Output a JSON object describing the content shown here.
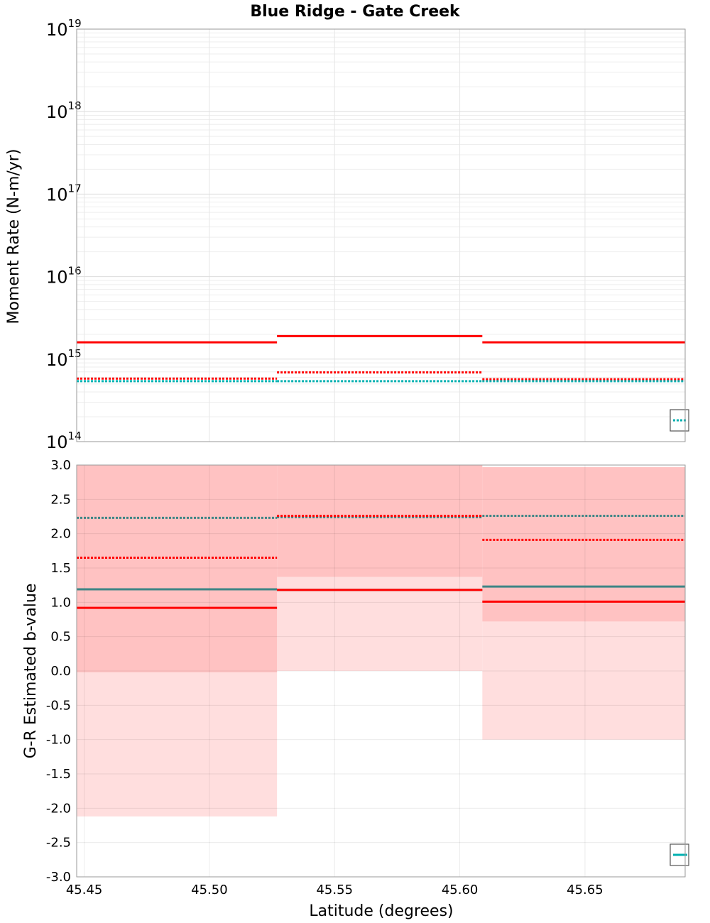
{
  "chart_data": [
    {
      "type": "line",
      "title": "Blue Ridge - Gate Creek",
      "ylabel": "Moment Rate (N-m/yr)",
      "yscale": "log",
      "ylim": [
        100000000000000.0,
        1e+19
      ],
      "xlim": [
        45.447,
        45.69
      ],
      "ytick_base": "10",
      "yticks": [
        {
          "value": 100000000000000.0,
          "exp": "14"
        },
        {
          "value": 1000000000000000.0,
          "exp": "15"
        },
        {
          "value": 1e+16,
          "exp": "16"
        },
        {
          "value": 1e+17,
          "exp": "17"
        },
        {
          "value": 1e+18,
          "exp": "18"
        },
        {
          "value": 1e+19,
          "exp": "19"
        }
      ],
      "grid": true,
      "legend": "bottom-right (partially visible)",
      "series": [
        {
          "color": "#ff0000",
          "style": "solid",
          "segments": [
            [
              45.447,
              45.527,
              1600000000000000.0
            ],
            [
              45.527,
              45.609,
              1900000000000000.0
            ],
            [
              45.609,
              45.69,
              1600000000000000.0
            ]
          ]
        },
        {
          "color": "#ff0000",
          "style": "dotted",
          "segments": [
            [
              45.447,
              45.527,
              580000000000000.0
            ],
            [
              45.527,
              45.609,
              690000000000000.0
            ],
            [
              45.609,
              45.69,
              570000000000000.0
            ]
          ]
        },
        {
          "color": "#00b0b0",
          "style": "dotted",
          "segments": [
            [
              45.447,
              45.527,
              540000000000000.0
            ],
            [
              45.527,
              45.609,
              540000000000000.0
            ],
            [
              45.609,
              45.69,
              540000000000000.0
            ]
          ]
        }
      ]
    },
    {
      "type": "line",
      "xlabel": "Latitude (degrees)",
      "ylabel": "G-R Estimated b-value",
      "ylim": [
        -3.0,
        3.0
      ],
      "xlim": [
        45.447,
        45.69
      ],
      "yticks": [
        "-3.0",
        "-2.5",
        "-2.0",
        "-1.5",
        "-1.0",
        "-0.5",
        "0.0",
        "0.5",
        "1.0",
        "1.5",
        "2.0",
        "2.5",
        "3.0"
      ],
      "xticks": [
        "45.45",
        "45.50",
        "45.55",
        "45.60",
        "45.65"
      ],
      "grid": true,
      "legend": "bottom-right (partially visible)",
      "bands": [
        {
          "color": "#ffdede",
          "segments": [
            [
              45.447,
              45.527,
              -2.12,
              3.0
            ],
            [
              45.527,
              45.609,
              0.0,
              1.37
            ],
            [
              45.609,
              45.69,
              -1.0,
              0.72
            ]
          ]
        },
        {
          "color": "#ffc2c2",
          "segments": [
            [
              45.447,
              45.527,
              -0.02,
              3.0
            ],
            [
              45.527,
              45.609,
              1.37,
              3.0
            ],
            [
              45.609,
              45.69,
              0.72,
              2.97
            ]
          ]
        }
      ],
      "series": [
        {
          "color": "#3d8585",
          "style": "solid",
          "segments": [
            [
              45.447,
              45.527,
              1.19
            ],
            [
              45.527,
              45.609,
              1.18
            ],
            [
              45.609,
              45.69,
              1.23
            ]
          ]
        },
        {
          "color": "#ff0000",
          "style": "solid",
          "segments": [
            [
              45.447,
              45.527,
              0.92
            ],
            [
              45.527,
              45.609,
              1.18
            ],
            [
              45.609,
              45.69,
              1.01
            ]
          ]
        },
        {
          "color": "#3d8585",
          "style": "dotted",
          "segments": [
            [
              45.447,
              45.527,
              2.23
            ],
            [
              45.527,
              45.609,
              2.24
            ],
            [
              45.609,
              45.69,
              2.26
            ]
          ]
        },
        {
          "color": "#ff0000",
          "style": "dotted",
          "segments": [
            [
              45.447,
              45.527,
              1.65
            ],
            [
              45.527,
              45.609,
              2.26
            ],
            [
              45.609,
              45.69,
              1.91
            ]
          ]
        }
      ]
    }
  ]
}
